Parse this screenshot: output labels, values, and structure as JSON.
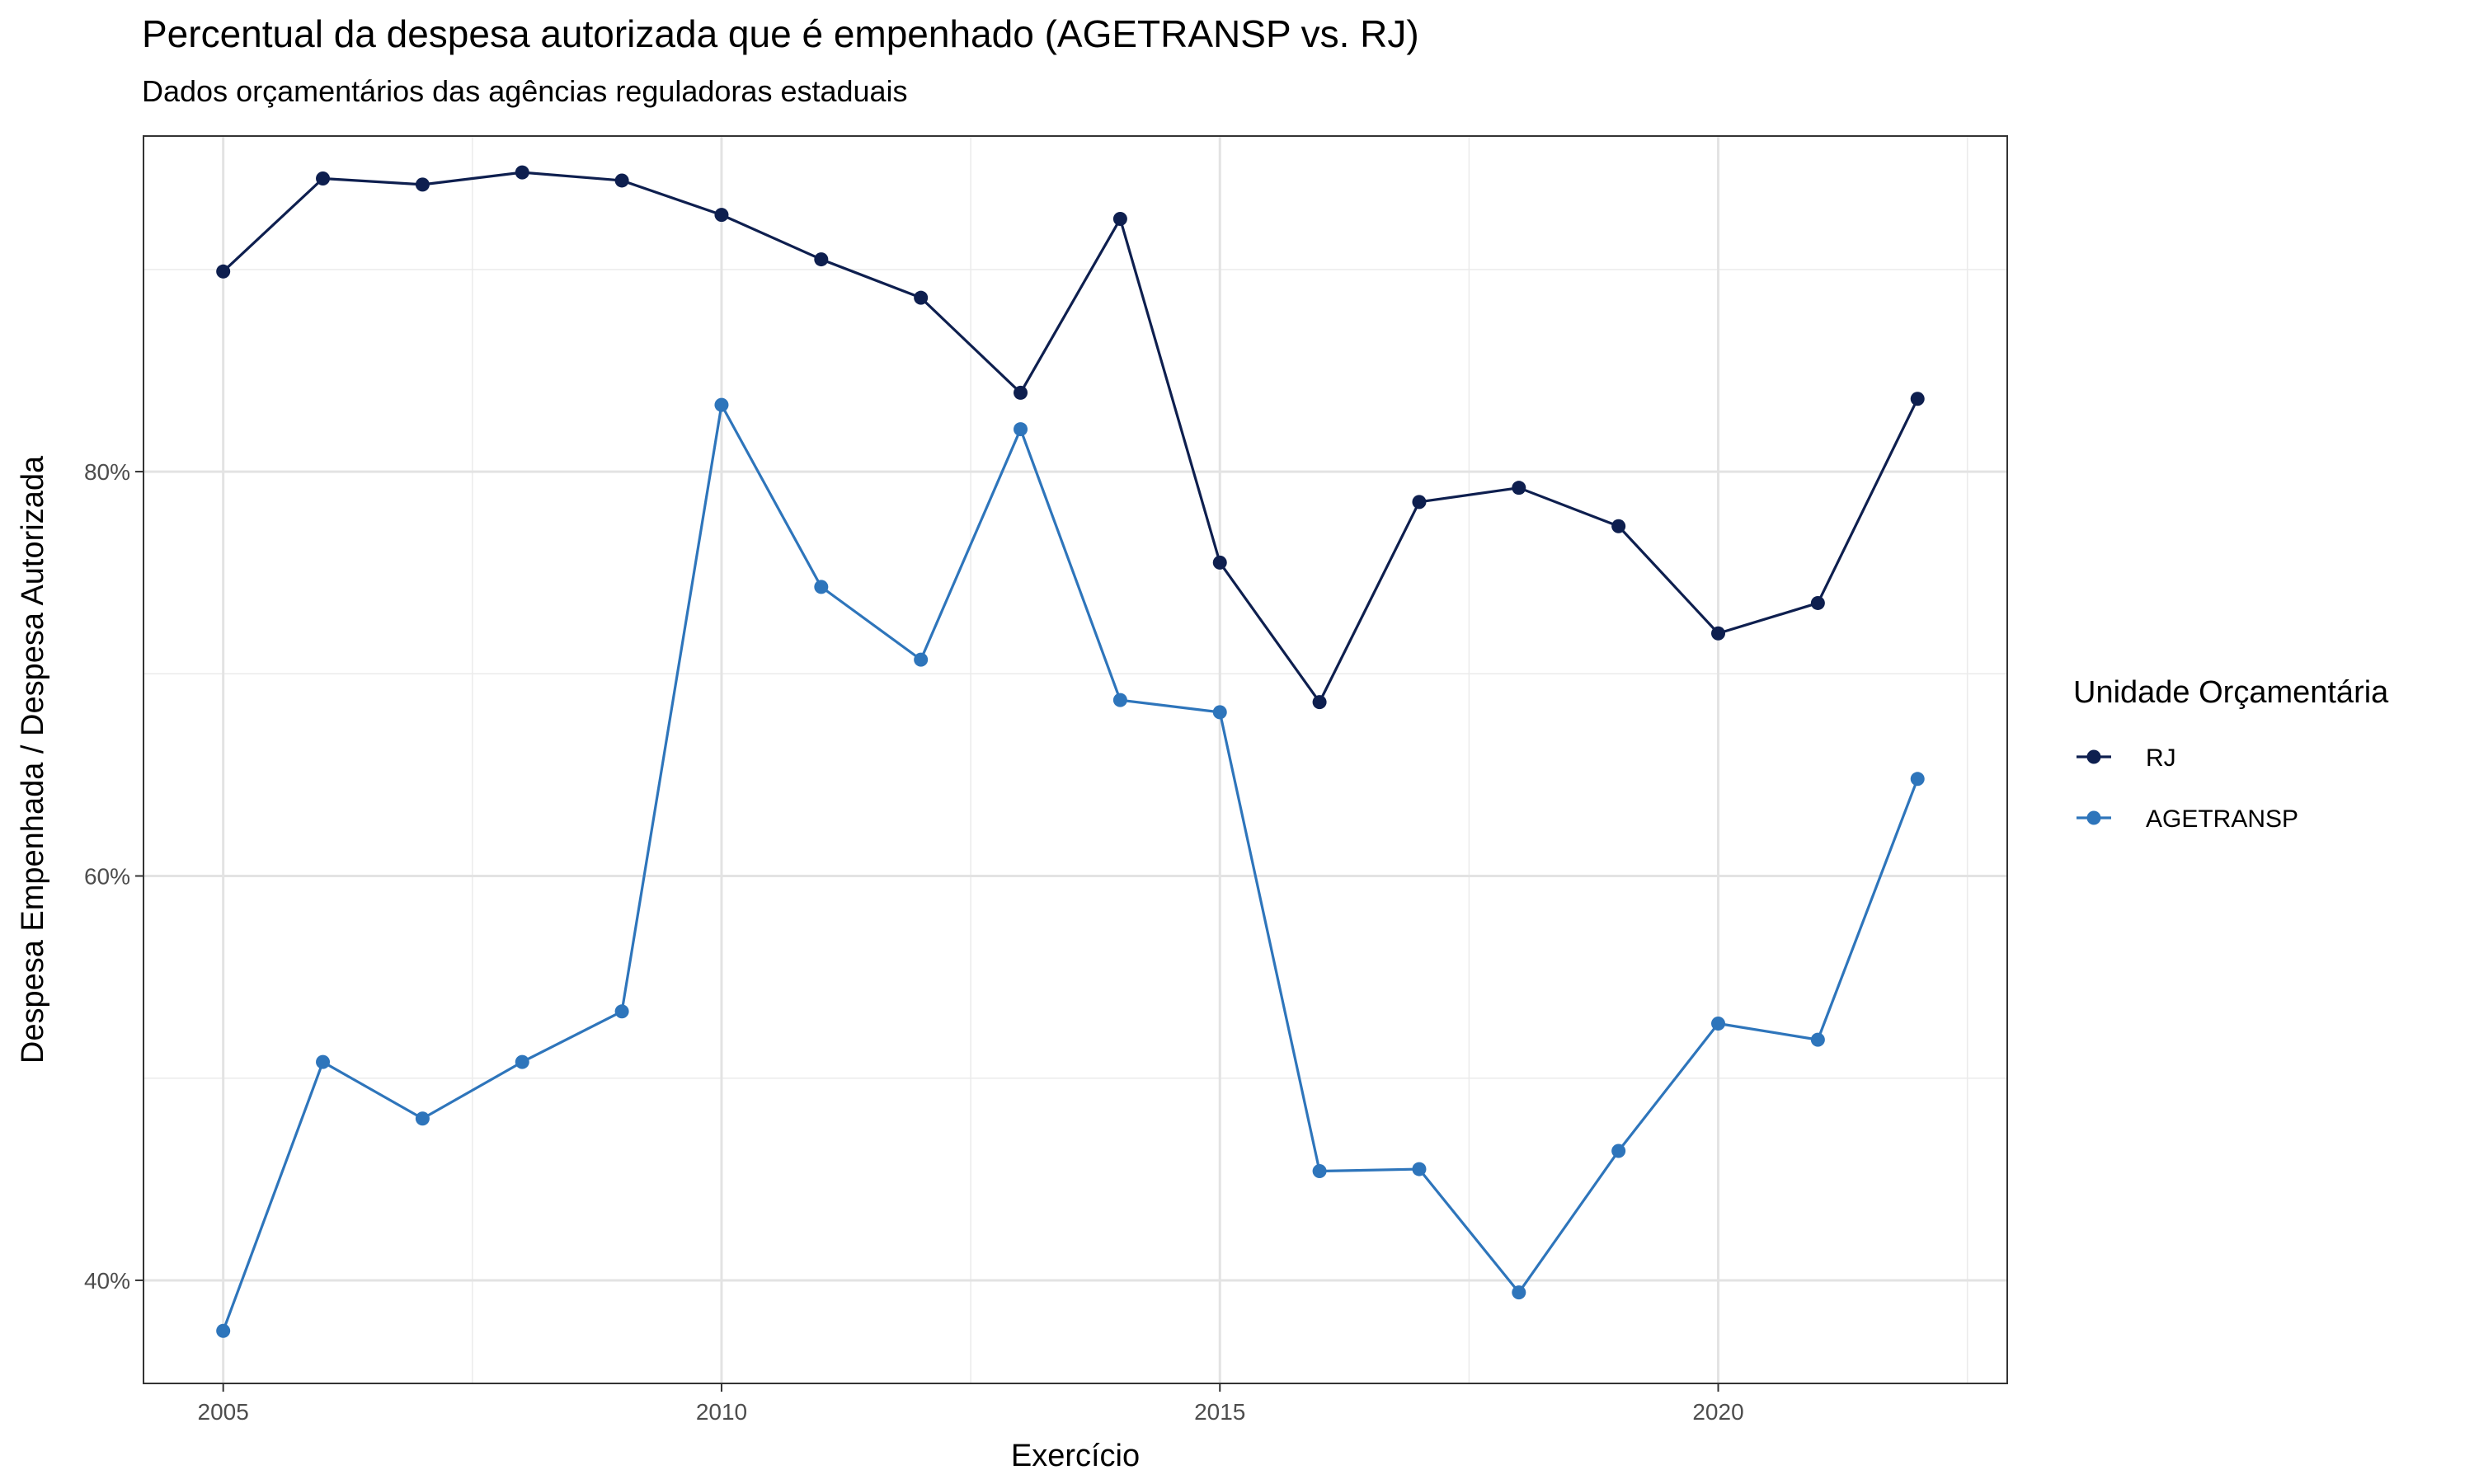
{
  "chart_data": {
    "type": "line",
    "title": "Percentual da despesa autorizada que é empenhado (AGETRANSP vs. RJ)",
    "subtitle": "Dados orçamentários das agências reguladoras estaduais",
    "xlabel": "Exercício",
    "ylabel": "Despesa Empenhada / Despesa Autorizada",
    "x": [
      2005,
      2006,
      2007,
      2008,
      2009,
      2010,
      2011,
      2012,
      2013,
      2014,
      2015,
      2016,
      2017,
      2018,
      2019,
      2020,
      2021,
      2022
    ],
    "xticks": [
      2005,
      2010,
      2015,
      2020
    ],
    "xtick_labels": [
      "2005",
      "2010",
      "2015",
      "2020"
    ],
    "xlim": [
      2004.2,
      2022.9
    ],
    "yticks": [
      0.4,
      0.6,
      0.8
    ],
    "ytick_labels": [
      "40%",
      "60%",
      "80%"
    ],
    "ylim": [
      0.349,
      0.966
    ],
    "grid": true,
    "legend": {
      "title": "Unidade Orçamentária",
      "position": "right"
    },
    "series": [
      {
        "name": "RJ",
        "color": "#0e1f4f",
        "values": [
          0.899,
          0.945,
          0.942,
          0.948,
          0.944,
          0.927,
          0.905,
          0.886,
          0.839,
          0.925,
          0.755,
          0.686,
          0.785,
          0.792,
          0.773,
          0.72,
          0.735,
          0.836
        ]
      },
      {
        "name": "AGETRANSP",
        "color": "#2e75bb",
        "values": [
          0.375,
          0.508,
          0.48,
          0.508,
          0.533,
          0.833,
          0.743,
          0.707,
          0.821,
          0.687,
          0.681,
          0.454,
          0.455,
          0.394,
          0.464,
          0.527,
          0.519,
          0.648
        ]
      }
    ]
  }
}
